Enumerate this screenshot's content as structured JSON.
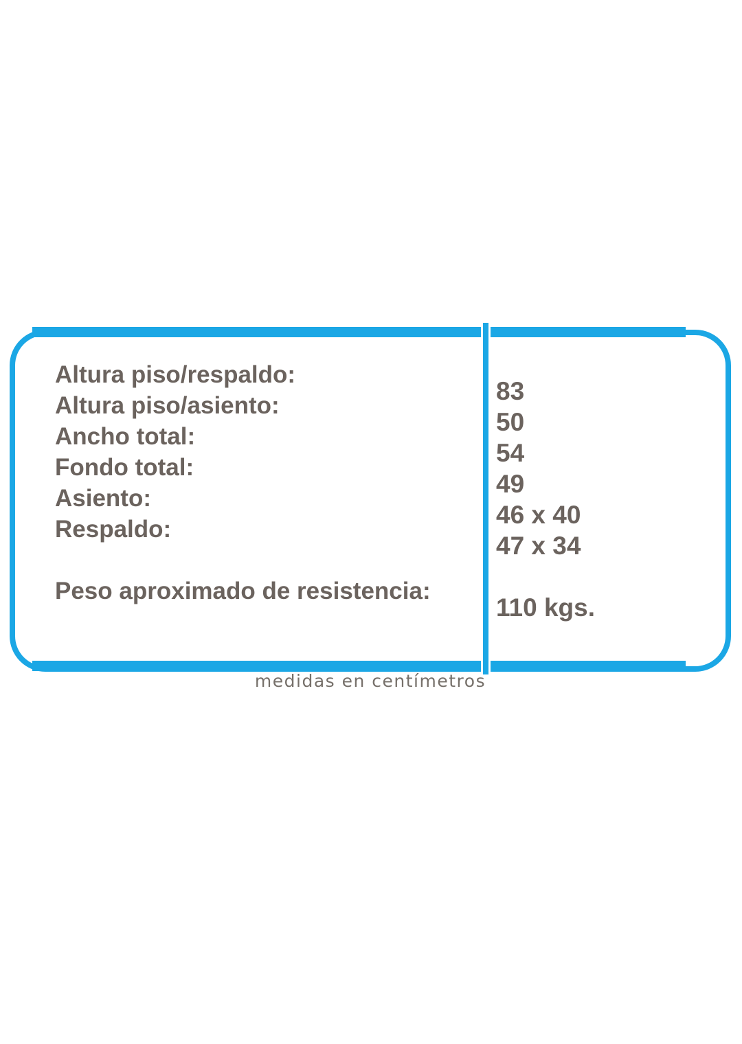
{
  "spec_table": {
    "rows": [
      {
        "label": "Altura piso/respaldo:",
        "value": "83"
      },
      {
        "label": "Altura piso/asiento:",
        "value": "50"
      },
      {
        "label": "Ancho total:",
        "value": "54"
      },
      {
        "label": "Fondo total:",
        "value": "49"
      },
      {
        "label": "Asiento:",
        "value": "46 x 40"
      },
      {
        "label": "Respaldo:",
        "value": "47 x 34"
      },
      {
        "label": "Peso aproximado de resistencia:",
        "value": "110 kgs."
      }
    ],
    "caption": "medidas en centímetros"
  },
  "colors": {
    "accent_border": "#1BA7E5",
    "label_text": "#6B635E",
    "caption_text": "#76706A",
    "background": "#FFFFFF"
  }
}
